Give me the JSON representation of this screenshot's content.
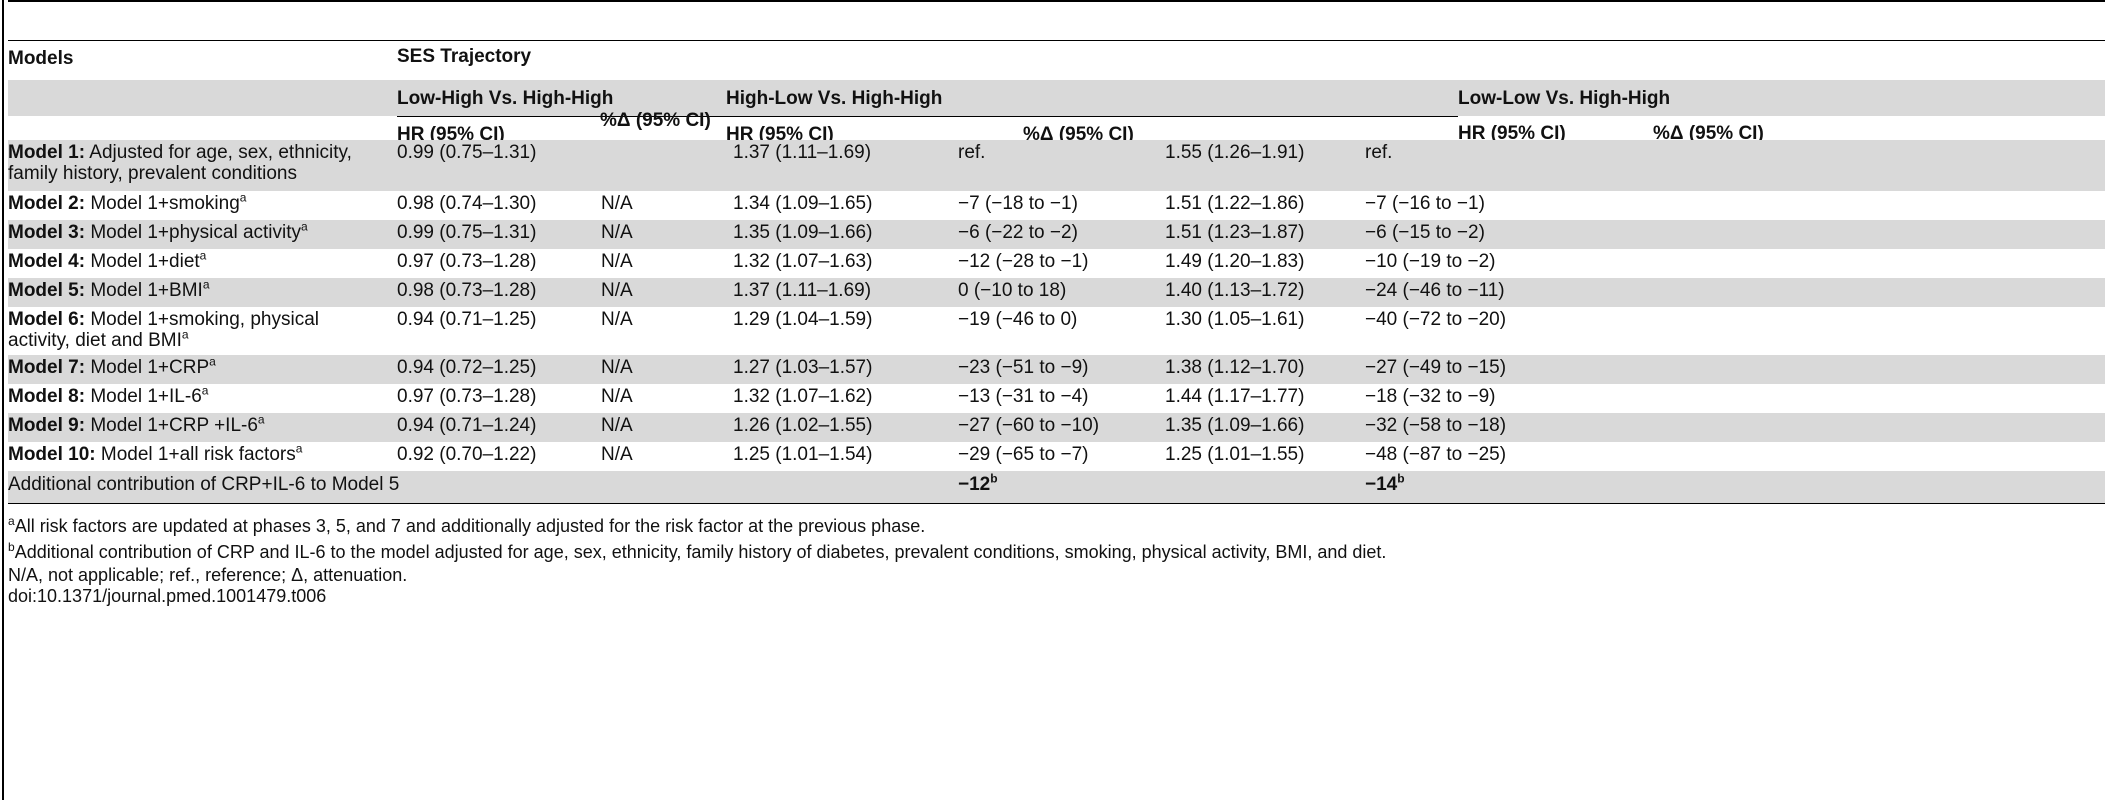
{
  "header": {
    "models": "Models",
    "ses_trajectory": "SES Trajectory",
    "groups": [
      "Low-High Vs. High-High",
      "High-Low Vs. High-High",
      "Low-Low Vs. High-High"
    ],
    "hr": "HR (95% CI)",
    "pct": "%Δ (95% CI)"
  },
  "rows": [
    {
      "name_bold": "Model 1:",
      "name_rest": " Adjusted for age, sex, ethnicity,",
      "name_line2": "family history, prevalent conditions",
      "sup": "",
      "c1": "0.99 (0.75–1.31)",
      "c2": "",
      "c3": "1.37 (1.11–1.69)",
      "c4": "ref.",
      "c5": "1.55 (1.26–1.91)",
      "c6": "ref."
    },
    {
      "name_bold": "Model 2:",
      "name_rest": " Model 1+smoking",
      "name_line2": "",
      "sup": "a",
      "c1": "0.98 (0.74–1.30)",
      "c2": "N/A",
      "c3": "1.34 (1.09–1.65)",
      "c4": "−7 (−18 to −1)",
      "c5": "1.51 (1.22–1.86)",
      "c6": "−7 (−16 to −1)"
    },
    {
      "name_bold": "Model 3:",
      "name_rest": " Model 1+physical activity",
      "name_line2": "",
      "sup": "a",
      "c1": "0.99 (0.75–1.31)",
      "c2": "N/A",
      "c3": "1.35 (1.09–1.66)",
      "c4": "−6 (−22 to −2)",
      "c5": "1.51 (1.23–1.87)",
      "c6": "−6 (−15 to −2)"
    },
    {
      "name_bold": "Model 4:",
      "name_rest": " Model 1+diet",
      "name_line2": "",
      "sup": "a",
      "c1": "0.97 (0.73–1.28)",
      "c2": "N/A",
      "c3": "1.32 (1.07–1.63)",
      "c4": "−12 (−28 to −1)",
      "c5": "1.49 (1.20–1.83)",
      "c6": "−10 (−19 to −2)"
    },
    {
      "name_bold": "Model 5:",
      "name_rest": " Model 1+BMI",
      "name_line2": "",
      "sup": "a",
      "c1": "0.98 (0.73–1.28)",
      "c2": "N/A",
      "c3": "1.37 (1.11–1.69)",
      "c4": "0 (−10 to 18)",
      "c5": "1.40 (1.13–1.72)",
      "c6": "−24 (−46 to −11)"
    },
    {
      "name_bold": "Model 6:",
      "name_rest": " Model 1+smoking, physical",
      "name_line2": "activity, diet and BMI",
      "sup": "a",
      "c1": "0.94 (0.71–1.25)",
      "c2": "N/A",
      "c3": "1.29 (1.04–1.59)",
      "c4": "−19 (−46 to 0)",
      "c5": "1.30 (1.05–1.61)",
      "c6": "−40 (−72 to −20)"
    },
    {
      "name_bold": "Model 7:",
      "name_rest": " Model 1+CRP",
      "name_line2": "",
      "sup": "a",
      "c1": "0.94 (0.72–1.25)",
      "c2": "N/A",
      "c3": "1.27 (1.03–1.57)",
      "c4": "−23 (−51 to −9)",
      "c5": "1.38 (1.12–1.70)",
      "c6": "−27 (−49 to −15)"
    },
    {
      "name_bold": "Model 8:",
      "name_rest": " Model 1+IL-6",
      "name_line2": "",
      "sup": "a",
      "c1": "0.97 (0.73–1.28)",
      "c2": "N/A",
      "c3": "1.32 (1.07–1.62)",
      "c4": "−13 (−31 to −4)",
      "c5": "1.44 (1.17–1.77)",
      "c6": "−18 (−32 to −9)"
    },
    {
      "name_bold": "Model 9:",
      "name_rest": " Model 1+CRP +IL-6",
      "name_line2": "",
      "sup": "a",
      "c1": "0.94 (0.71–1.24)",
      "c2": "N/A",
      "c3": "1.26 (1.02–1.55)",
      "c4": "−27 (−60 to −10)",
      "c5": "1.35 (1.09–1.66)",
      "c6": "−32 (−58 to −18)"
    },
    {
      "name_bold": "Model 10:",
      "name_rest": " Model 1+all risk factors",
      "name_line2": "",
      "sup": "a",
      "c1": "0.92 (0.70–1.22)",
      "c2": "N/A",
      "c3": "1.25 (1.01–1.54)",
      "c4": "−29 (−65 to −7)",
      "c5": "1.25 (1.01–1.55)",
      "c6": "−48 (−87 to −25)"
    }
  ],
  "additional": {
    "label": "Additional contribution of CRP+IL-6 to Model 5",
    "c4": "−12",
    "c4_sup": "b",
    "c6": "−14",
    "c6_sup": "b"
  },
  "footnotes": {
    "a_mark": "a",
    "a_text": "All risk factors are updated at phases 3, 5, and 7 and additionally adjusted for the risk factor at the previous phase.",
    "b_mark": "b",
    "b_text": "Additional contribution of CRP and IL-6 to the model adjusted for age, sex, ethnicity, family history of diabetes, prevalent conditions, smoking, physical activity, BMI, and diet.",
    "abbrev": "N/A, not applicable; ref., reference; Δ, attenuation.",
    "doi": "doi:10.1371/journal.pmed.1001479.t006"
  }
}
